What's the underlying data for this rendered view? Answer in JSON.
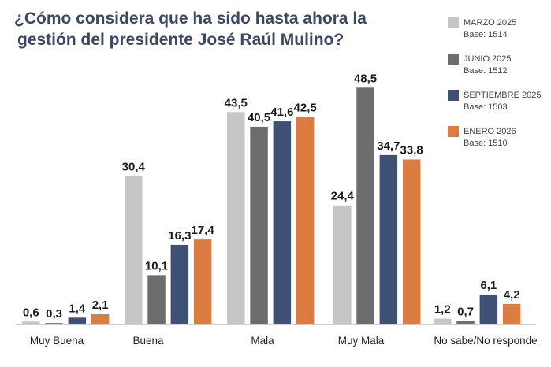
{
  "chart_data": {
    "type": "bar",
    "title": [
      "¿Cómo considera que ha sido hasta ahora la",
      "gestión del presidente José Raúl Mulino?"
    ],
    "categories": [
      "Muy Buena",
      "Buena",
      "Mala",
      "Muy Mala",
      "No sabe/No responde"
    ],
    "series": [
      {
        "name": "MARZO 2025",
        "base": "Base: 1514",
        "color": "#c6c6c8",
        "values": [
          0.6,
          30.4,
          43.5,
          24.4,
          1.2
        ],
        "value_labels": [
          "0,6",
          "30,4",
          "43,5",
          "24,4",
          "1,2"
        ]
      },
      {
        "name": "JUNIO 2025",
        "base": "Base: 1512",
        "color": "#6d6d6d",
        "values": [
          0.3,
          10.1,
          40.5,
          48.5,
          0.7
        ],
        "value_labels": [
          "0,3",
          "10,1",
          "40,5",
          "48,5",
          "0,7"
        ]
      },
      {
        "name": "SEPTIEMBRE 2025",
        "base": "Base: 1503",
        "color": "#3e5073",
        "values": [
          1.4,
          16.3,
          41.6,
          34.7,
          6.1
        ],
        "value_labels": [
          "1,4",
          "16,3",
          "41,6",
          "34,7",
          "6,1"
        ]
      },
      {
        "name": "ENERO 2026",
        "base": "Base: 1510",
        "color": "#dc7c40",
        "values": [
          2.1,
          17.4,
          42.5,
          33.8,
          4.2
        ],
        "value_labels": [
          "2,1",
          "17,4",
          "42,5",
          "33,8",
          "4,2"
        ]
      }
    ]
  }
}
